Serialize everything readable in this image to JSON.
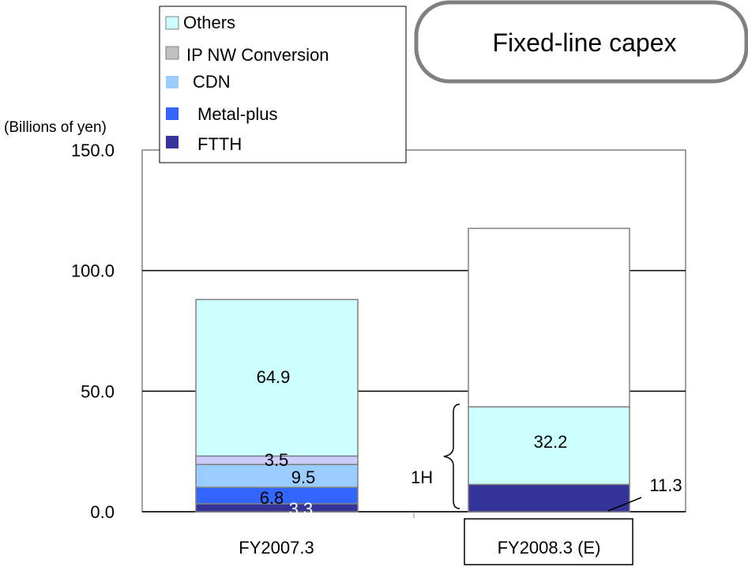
{
  "chart_data": {
    "type": "bar",
    "stacked": true,
    "title": "Fixed-line capex",
    "ylabel": "(Billions of yen)",
    "ylim": [
      0,
      150
    ],
    "yticks": [
      "0.0",
      "50.0",
      "100.0",
      "150.0"
    ],
    "grid": true,
    "legend_position": "top-left",
    "categories": [
      "FY2007.3",
      "FY2008.3 (E)"
    ],
    "series": [
      {
        "name": "FTTH",
        "color": "#333399",
        "values": [
          3.3,
          11.3
        ]
      },
      {
        "name": "Metal-plus",
        "color": "#3366ff",
        "values": [
          6.8,
          null
        ]
      },
      {
        "name": "CDN",
        "color": "#99ccff",
        "values": [
          9.5,
          null
        ]
      },
      {
        "name": "IP NW Conversion",
        "color": "#c0c0c0",
        "values": [
          null,
          null
        ]
      },
      {
        "name": "Others",
        "color": "#ccffff",
        "values": [
          64.9,
          32.2
        ]
      }
    ],
    "extra_segments": [
      {
        "category": "FY2007.3",
        "label": "3.5",
        "value": 3.5,
        "color": "#ccccff"
      },
      {
        "category": "FY2008.3 (E)",
        "label": "",
        "value": 74.0,
        "color": "#ffffff"
      }
    ],
    "data_labels": {
      "FY2007.3": [
        "3.3",
        "6.8",
        "9.5",
        "3.5",
        "64.9"
      ],
      "FY2008.3 (E)": [
        "11.3",
        "32.2"
      ]
    },
    "annotations": {
      "half_year_label": "1H"
    },
    "legend_order": [
      "Others",
      "IP NW Conversion",
      "CDN",
      "Metal-plus",
      "FTTH"
    ]
  }
}
